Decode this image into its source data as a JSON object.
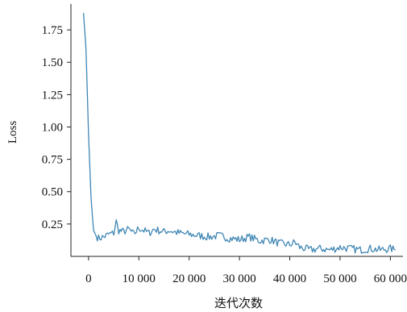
{
  "chart_data": {
    "type": "line",
    "xlabel": "迭代次数",
    "ylabel": "Loss",
    "xlim": [
      -3500,
      62500
    ],
    "ylim": [
      0.0,
      1.95
    ],
    "x_ticks": [
      0,
      10000,
      20000,
      30000,
      40000,
      50000,
      60000
    ],
    "x_tick_labels": [
      "0",
      "10 000",
      "20 000",
      "30 000",
      "40 000",
      "50 000",
      "60 000"
    ],
    "y_ticks": [
      0.25,
      0.5,
      0.75,
      1.0,
      1.25,
      1.5,
      1.75
    ],
    "y_tick_labels": [
      "0.25",
      "0.50",
      "0.75",
      "1.00",
      "1.25",
      "1.50",
      "1.75"
    ],
    "grid": false,
    "line_color": "#3f86b4",
    "series": [
      {
        "x": [
          -1000,
          -500,
          0,
          500,
          1000,
          1500,
          2000,
          3000,
          4000,
          5000,
          5500,
          6000,
          7000,
          8000,
          9000,
          10000,
          11000,
          12000,
          13000,
          14000,
          15000,
          16000,
          18000,
          20000,
          22000,
          24000,
          26000,
          28000,
          30000,
          32000,
          34000,
          36000,
          38000,
          40000,
          41000,
          42000,
          43000,
          44000,
          46000,
          48000,
          50000,
          52000,
          54000,
          56000,
          58000,
          60000,
          61000
        ],
        "y": [
          1.88,
          1.6,
          0.95,
          0.45,
          0.2,
          0.16,
          0.14,
          0.15,
          0.17,
          0.18,
          0.27,
          0.2,
          0.19,
          0.21,
          0.17,
          0.22,
          0.2,
          0.18,
          0.21,
          0.2,
          0.19,
          0.2,
          0.18,
          0.17,
          0.16,
          0.15,
          0.16,
          0.14,
          0.13,
          0.15,
          0.12,
          0.13,
          0.1,
          0.09,
          0.11,
          0.07,
          0.06,
          0.05,
          0.06,
          0.05,
          0.07,
          0.06,
          0.05,
          0.06,
          0.05,
          0.06,
          0.05
        ]
      }
    ]
  }
}
